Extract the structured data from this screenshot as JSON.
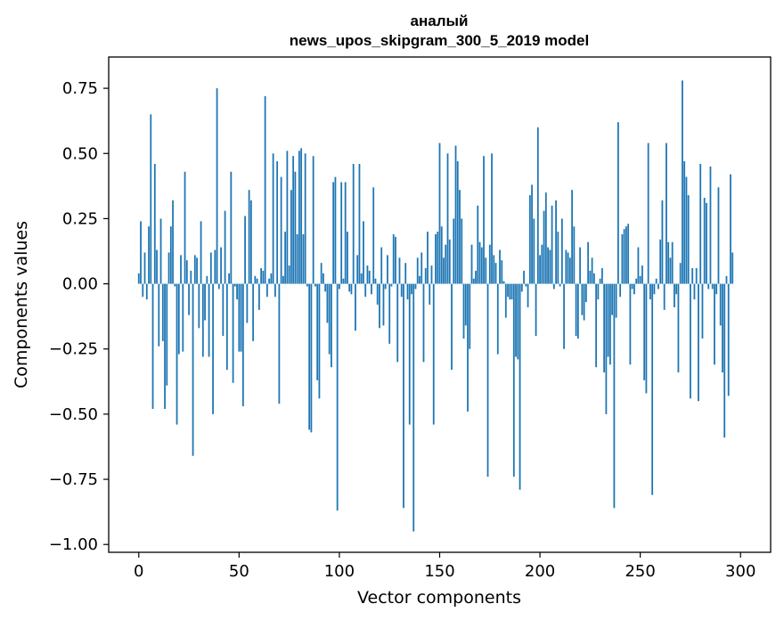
{
  "chart_data": {
    "type": "bar",
    "title_line1": "аналый",
    "title_line2": "news_upos_skipgram_300_5_2019 model",
    "xlabel": "Vector components",
    "ylabel": "Components values",
    "xlim": [
      -15,
      315
    ],
    "ylim": [
      -1.03,
      0.87
    ],
    "xticks": [
      0,
      50,
      100,
      150,
      200,
      250,
      300
    ],
    "xtick_labels": [
      "0",
      "50",
      "100",
      "150",
      "200",
      "250",
      "300"
    ],
    "yticks": [
      0.75,
      0.5,
      0.25,
      0.0,
      -0.25,
      -0.5,
      -0.75,
      -1.0
    ],
    "ytick_labels": [
      "0.75",
      "0.50",
      "0.25",
      "0.00",
      "−0.25",
      "−0.50",
      "−0.75",
      "−1.00"
    ],
    "bar_color": "#1f77b4",
    "values": [
      0.04,
      0.24,
      -0.05,
      0.12,
      -0.06,
      0.22,
      0.65,
      -0.48,
      0.46,
      0.13,
      -0.24,
      0.25,
      -0.22,
      -0.48,
      -0.39,
      0.12,
      0.22,
      0.32,
      -0.01,
      -0.54,
      -0.27,
      0.11,
      -0.26,
      0.43,
      0.09,
      -0.12,
      0.05,
      -0.66,
      0.11,
      0.1,
      -0.17,
      0.24,
      -0.28,
      -0.14,
      0.03,
      -0.28,
      0.12,
      -0.5,
      0.13,
      0.75,
      -0.02,
      0.14,
      -0.2,
      0.28,
      -0.33,
      0.04,
      0.43,
      -0.38,
      -0.01,
      -0.06,
      -0.26,
      -0.26,
      -0.47,
      0.26,
      -0.15,
      0.36,
      0.32,
      -0.22,
      0.03,
      0.02,
      -0.1,
      0.06,
      0.05,
      0.72,
      -0.05,
      0.02,
      0.04,
      0.5,
      -0.05,
      0.47,
      -0.46,
      0.41,
      0.03,
      0.2,
      0.51,
      0.07,
      0.36,
      0.49,
      0.43,
      0.19,
      0.51,
      0.52,
      0.19,
      0.5,
      -0.01,
      -0.56,
      -0.57,
      0.49,
      -0.01,
      -0.37,
      -0.44,
      0.08,
      0.04,
      -0.03,
      -0.15,
      -0.27,
      -0.32,
      0.39,
      0.41,
      -0.87,
      -0.02,
      0.39,
      0.02,
      0.39,
      0.2,
      -0.03,
      -0.04,
      0.46,
      -0.18,
      0.11,
      0.46,
      0.04,
      0.24,
      -0.05,
      0.07,
      0.05,
      -0.04,
      0.37,
      0.02,
      -0.08,
      -0.17,
      0.14,
      -0.16,
      -0.02,
      0.11,
      -0.23,
      -0.01,
      0.19,
      0.18,
      -0.3,
      0.1,
      -0.05,
      -0.86,
      0.08,
      -0.06,
      -0.54,
      -0.04,
      -0.95,
      -0.02,
      0.1,
      0.03,
      0.12,
      -0.3,
      0.06,
      0.2,
      -0.08,
      0.07,
      -0.54,
      0.19,
      0.2,
      0.54,
      0.22,
      0.1,
      0.15,
      0.5,
      0.17,
      -0.33,
      0.25,
      0.53,
      0.47,
      0.36,
      0.25,
      -0.21,
      -0.16,
      -0.49,
      -0.25,
      0.15,
      0.02,
      0.05,
      0.3,
      0.16,
      0.14,
      0.49,
      0.1,
      -0.74,
      0.15,
      0.5,
      0.11,
      0.08,
      -0.27,
      0.13,
      0.09,
      0.01,
      -0.13,
      -0.05,
      -0.06,
      -0.06,
      -0.74,
      -0.28,
      -0.29,
      -0.79,
      -0.03,
      0.05,
      -0.01,
      -0.09,
      0.34,
      0.38,
      0.25,
      -0.2,
      0.6,
      0.11,
      0.15,
      0.28,
      0.35,
      0.14,
      0.13,
      0.3,
      -0.02,
      0.32,
      0.2,
      -0.01,
      0.25,
      -0.25,
      0.13,
      0.12,
      0.1,
      0.36,
      0.22,
      -0.2,
      -0.21,
      0.14,
      -0.12,
      -0.14,
      -0.07,
      0.16,
      0.05,
      0.1,
      0.04,
      -0.32,
      -0.06,
      0.02,
      0.06,
      -0.34,
      -0.5,
      -0.28,
      -0.31,
      -0.12,
      -0.86,
      -0.13,
      0.62,
      -0.05,
      0.19,
      0.21,
      0.22,
      0.23,
      -0.31,
      -0.02,
      -0.04,
      0.02,
      0.14,
      0.03,
      0.07,
      -0.37,
      -0.42,
      0.54,
      -0.06,
      -0.81,
      -0.04,
      0.02,
      -0.02,
      0.17,
      0.32,
      -0.1,
      0.54,
      0.16,
      0.1,
      0.16,
      -0.09,
      -0.04,
      -0.34,
      0.08,
      0.78,
      0.47,
      0.41,
      0.34,
      -0.44,
      0.06,
      -0.06,
      0.06,
      -0.45,
      0.46,
      -0.21,
      0.33,
      0.31,
      -0.02,
      0.45,
      -0.02,
      -0.31,
      -0.04,
      0.37,
      -0.16,
      -0.34,
      -0.59,
      0.03,
      -0.43,
      0.42,
      0.12
    ]
  }
}
